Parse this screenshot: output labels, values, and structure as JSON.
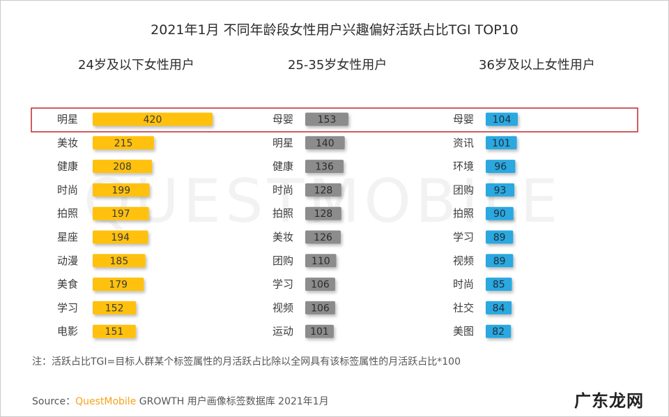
{
  "title": "2021年1月 不同年龄段女性用户兴趣偏好活跃占比TGI TOP10",
  "watermark": "QUESTMOBILE",
  "footnote": "注：活跃占比TGI=目标人群某个标签属性的月活跃占比除以全网具有该标签属性的月活跃占比*100",
  "source": {
    "prefix": "Source：",
    "brand": "QuestMobile",
    "suffix": " GROWTH 用户画像标签数据库 2021年1月"
  },
  "corner_mark": "广东龙网",
  "colors": {
    "panel1": "#ffc107",
    "panel2": "#8c8c8c",
    "panel3": "#29a8df",
    "highlight": "#c0262b",
    "brand": "#f5a21b"
  },
  "chart_data": [
    {
      "type": "bar",
      "orientation": "horizontal",
      "title": "24岁及以下女性用户",
      "categories": [
        "明星",
        "美妆",
        "健康",
        "时尚",
        "拍照",
        "星座",
        "动漫",
        "美食",
        "学习",
        "电影"
      ],
      "values": [
        420,
        215,
        208,
        199,
        197,
        194,
        185,
        179,
        152,
        151
      ]
    },
    {
      "type": "bar",
      "orientation": "horizontal",
      "title": "25-35岁女性用户",
      "categories": [
        "母婴",
        "明星",
        "健康",
        "时尚",
        "拍照",
        "美妆",
        "团购",
        "学习",
        "视频",
        "运动"
      ],
      "values": [
        153,
        140,
        136,
        128,
        128,
        126,
        110,
        106,
        106,
        101
      ]
    },
    {
      "type": "bar",
      "orientation": "horizontal",
      "title": "36岁及以上女性用户",
      "categories": [
        "母婴",
        "资讯",
        "环境",
        "团购",
        "拍照",
        "学习",
        "视频",
        "时尚",
        "社交",
        "美图"
      ],
      "values": [
        104,
        101,
        96,
        93,
        90,
        89,
        89,
        85,
        84,
        82
      ]
    }
  ]
}
